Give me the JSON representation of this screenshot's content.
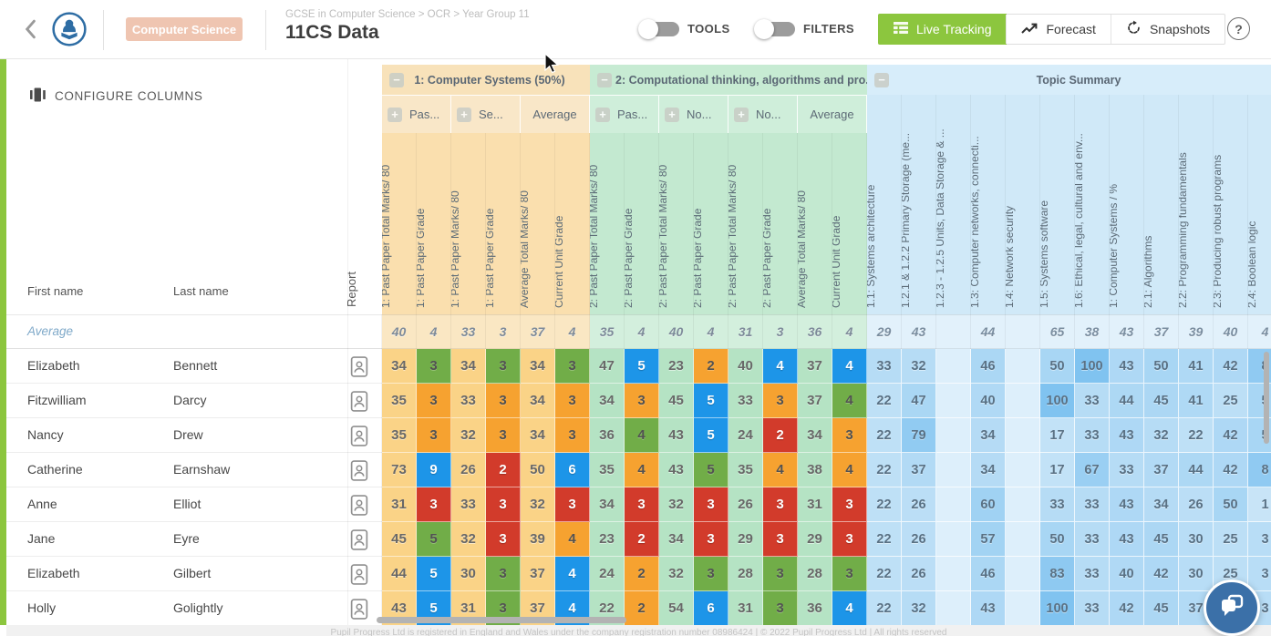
{
  "colors": {
    "brand_green": "#8CC63E",
    "badge_salmon": "#EFC5B1",
    "grade_green": "#71AD48",
    "grade_orange": "#F6A230",
    "grade_blue": "#1D95E8",
    "grade_red": "#D23B2B"
  },
  "header": {
    "badge": "Computer Science",
    "breadcrumb": "GCSE in Computer Science > OCR > Year Group 11",
    "title": "11CS Data",
    "toggles": [
      {
        "label": "TOOLS",
        "on": false
      },
      {
        "label": "FILTERS",
        "on": false
      }
    ],
    "view_buttons": [
      {
        "label": "Live Tracking",
        "icon": "table-icon",
        "active": true
      },
      {
        "label": "Forecast",
        "icon": "trend-up-icon",
        "active": false
      },
      {
        "label": "Snapshots",
        "icon": "history-icon",
        "active": false
      }
    ],
    "help": "?"
  },
  "left_panel": {
    "configure_columns": "CONFIGURE COLUMNS",
    "first_name": "First name",
    "last_name": "Last name",
    "report": "Report"
  },
  "table": {
    "groups": [
      {
        "name": "1: Computer Systems (50%)",
        "theme": "orange",
        "subgroups": [
          {
            "label": "Pas...",
            "expandable": true,
            "span": 2
          },
          {
            "label": "Se...",
            "expandable": true,
            "span": 2
          },
          {
            "label": "Average",
            "expandable": false,
            "span": 2
          }
        ],
        "columns": [
          "1: Past Paper Total Marks/ 80",
          "1: Past Paper Grade",
          "1: Past Paper Marks/ 80",
          "1: Past Paper Grade",
          "Average Total Marks/ 80",
          "Current Unit Grade"
        ]
      },
      {
        "name": "2: Computational thinking, algorithms and pro...",
        "theme": "green",
        "subgroups": [
          {
            "label": "Pas...",
            "expandable": true,
            "span": 2
          },
          {
            "label": "No...",
            "expandable": true,
            "span": 2
          },
          {
            "label": "No...",
            "expandable": true,
            "span": 2
          },
          {
            "label": "Average",
            "expandable": false,
            "span": 2
          }
        ],
        "columns": [
          "2: Past Paper Total Marks/ 80",
          "2: Past Paper Grade",
          "2: Past Paper Total Marks/ 80",
          "2: Past Paper Grade",
          "2: Past Paper Total Marks/ 80",
          "2: Past Paper Grade",
          "Average Total Marks/ 80",
          "Current Unit Grade"
        ]
      },
      {
        "name": "Topic Summary",
        "theme": "blue",
        "columns": [
          "1.1: Systems architecture",
          "1.2.1 & 1.2.2 Primary Storage (me...",
          "1.2.3 - 1.2.5 Units, Data Storage & ...",
          "1.3: Computer networks, connecti...",
          "1.4: Network security",
          "1.5: Systems software",
          "1.6: Ethical, legal, cultural and env...",
          "1: Computer Systems / %",
          "2.1: Algorithms",
          "2.2: Programming fundamentals",
          "2.3: Producing robust programs",
          "2.4: Boolean logic"
        ]
      }
    ],
    "average_row": {
      "label": "Average",
      "g1": [
        40,
        4,
        33,
        3,
        37,
        4
      ],
      "g2": [
        35,
        4,
        40,
        4,
        31,
        3,
        36,
        4
      ],
      "topics": [
        29,
        43,
        null,
        44,
        null,
        65,
        38,
        43,
        37,
        39,
        40,
        "4"
      ]
    },
    "students": [
      {
        "first": "Elizabeth",
        "last": "Bennett",
        "g1": [
          34,
          {
            "v": 3,
            "c": "green"
          },
          34,
          {
            "v": 3,
            "c": "green"
          },
          34,
          {
            "v": 3,
            "c": "green"
          }
        ],
        "g2": [
          47,
          {
            "v": 5,
            "c": "blue"
          },
          23,
          {
            "v": 2,
            "c": "orange"
          },
          40,
          {
            "v": 4,
            "c": "blue"
          },
          37,
          {
            "v": 4,
            "c": "blue"
          }
        ],
        "topics": [
          33,
          32,
          null,
          46,
          null,
          50,
          100,
          43,
          50,
          41,
          42,
          "8"
        ]
      },
      {
        "first": "Fitzwilliam",
        "last": "Darcy",
        "g1": [
          35,
          {
            "v": 3,
            "c": "orange"
          },
          33,
          {
            "v": 3,
            "c": "orange"
          },
          34,
          {
            "v": 3,
            "c": "orange"
          }
        ],
        "g2": [
          34,
          {
            "v": 3,
            "c": "orange"
          },
          45,
          {
            "v": 5,
            "c": "blue"
          },
          33,
          {
            "v": 3,
            "c": "orange"
          },
          37,
          {
            "v": 4,
            "c": "green"
          }
        ],
        "topics": [
          22,
          47,
          null,
          40,
          null,
          100,
          33,
          44,
          45,
          41,
          25,
          "5"
        ]
      },
      {
        "first": "Nancy",
        "last": "Drew",
        "g1": [
          35,
          {
            "v": 3,
            "c": "orange"
          },
          32,
          {
            "v": 3,
            "c": "orange"
          },
          34,
          {
            "v": 3,
            "c": "orange"
          }
        ],
        "g2": [
          36,
          {
            "v": 4,
            "c": "green"
          },
          43,
          {
            "v": 5,
            "c": "blue"
          },
          24,
          {
            "v": 2,
            "c": "red"
          },
          34,
          {
            "v": 3,
            "c": "orange"
          }
        ],
        "topics": [
          22,
          79,
          null,
          34,
          null,
          17,
          33,
          43,
          32,
          22,
          42,
          "5"
        ]
      },
      {
        "first": "Catherine",
        "last": "Earnshaw",
        "g1": [
          73,
          {
            "v": 9,
            "c": "blue"
          },
          26,
          {
            "v": 2,
            "c": "red"
          },
          50,
          {
            "v": 6,
            "c": "blue"
          }
        ],
        "g2": [
          35,
          {
            "v": 4,
            "c": "orange"
          },
          43,
          {
            "v": 5,
            "c": "green"
          },
          35,
          {
            "v": 4,
            "c": "orange"
          },
          38,
          {
            "v": 4,
            "c": "orange"
          }
        ],
        "topics": [
          22,
          37,
          null,
          34,
          null,
          17,
          67,
          33,
          37,
          44,
          42,
          "8"
        ]
      },
      {
        "first": "Anne",
        "last": "Elliot",
        "g1": [
          31,
          {
            "v": 3,
            "c": "red"
          },
          33,
          {
            "v": 3,
            "c": "red"
          },
          32,
          {
            "v": 3,
            "c": "red"
          }
        ],
        "g2": [
          34,
          {
            "v": 3,
            "c": "red"
          },
          32,
          {
            "v": 3,
            "c": "red"
          },
          26,
          {
            "v": 3,
            "c": "red"
          },
          31,
          {
            "v": 3,
            "c": "red"
          }
        ],
        "topics": [
          22,
          26,
          null,
          60,
          null,
          33,
          33,
          43,
          34,
          26,
          50,
          "1"
        ]
      },
      {
        "first": "Jane",
        "last": "Eyre",
        "g1": [
          45,
          {
            "v": 5,
            "c": "green"
          },
          32,
          {
            "v": 3,
            "c": "red"
          },
          39,
          {
            "v": 4,
            "c": "orange"
          }
        ],
        "g2": [
          23,
          {
            "v": 2,
            "c": "red"
          },
          34,
          {
            "v": 3,
            "c": "red"
          },
          29,
          {
            "v": 3,
            "c": "red"
          },
          29,
          {
            "v": 3,
            "c": "red"
          }
        ],
        "topics": [
          22,
          26,
          null,
          57,
          null,
          50,
          33,
          43,
          45,
          30,
          25,
          "3"
        ]
      },
      {
        "first": "Elizabeth",
        "last": "Gilbert",
        "g1": [
          44,
          {
            "v": 5,
            "c": "blue"
          },
          30,
          {
            "v": 3,
            "c": "green"
          },
          37,
          {
            "v": 4,
            "c": "blue"
          }
        ],
        "g2": [
          24,
          {
            "v": 2,
            "c": "orange"
          },
          32,
          {
            "v": 3,
            "c": "green"
          },
          28,
          {
            "v": 3,
            "c": "green"
          },
          28,
          {
            "v": 3,
            "c": "green"
          }
        ],
        "topics": [
          22,
          26,
          null,
          46,
          null,
          83,
          33,
          40,
          42,
          30,
          25,
          "3"
        ]
      },
      {
        "first": "Holly",
        "last": "Golightly",
        "g1": [
          43,
          {
            "v": 5,
            "c": "blue"
          },
          31,
          {
            "v": 3,
            "c": "green"
          },
          37,
          {
            "v": 4,
            "c": "blue"
          }
        ],
        "g2": [
          22,
          {
            "v": 2,
            "c": "orange"
          },
          54,
          {
            "v": 6,
            "c": "blue"
          },
          31,
          {
            "v": 3,
            "c": "green"
          },
          36,
          {
            "v": 4,
            "c": "blue"
          }
        ],
        "topics": [
          22,
          32,
          null,
          43,
          null,
          100,
          33,
          42,
          45,
          37,
          25,
          "3"
        ]
      }
    ]
  },
  "footer": {
    "text": "Pupil Progress Ltd is registered in England and Wales under the company registration number 08986424 | © 2022 Pupil Progress Ltd | All rights reserved"
  }
}
